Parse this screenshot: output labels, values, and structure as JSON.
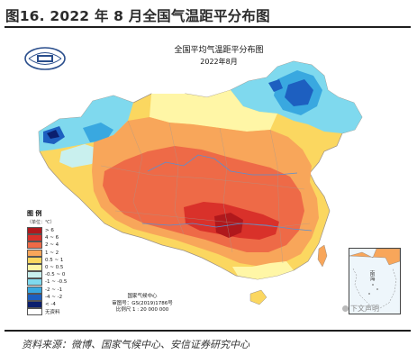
{
  "figure": {
    "title": "图16. 2022 年 8 月全国气温距平分布图",
    "source": "资料来源：微博、国家气候中心、安信证券研究中心"
  },
  "map": {
    "title": "全国平均气温距平分布图",
    "subtitle": "2022年8月",
    "agency_lines": [
      "国家气候中心",
      "审图号：GS(2019)1786号",
      "比例尺 1 : 20 000 000"
    ],
    "inset_label": "南海",
    "watermark": "下文声明",
    "legend": {
      "title": "图 例",
      "unit": "（单位：℃）",
      "items": [
        {
          "label": "> 6",
          "color": "#b0181c"
        },
        {
          "label": "4 ~ 6",
          "color": "#d9312a"
        },
        {
          "label": "2 ~ 4",
          "color": "#ee6a47"
        },
        {
          "label": "1 ~ 2",
          "color": "#f8a65a"
        },
        {
          "label": "0.5 ~ 1",
          "color": "#fbd760"
        },
        {
          "label": "0 ~ 0.5",
          "color": "#fff6a6"
        },
        {
          "label": "-0.5 ~ 0",
          "color": "#c9f0ee"
        },
        {
          "label": "-1 ~ -0.5",
          "color": "#7fd9ee"
        },
        {
          "label": "-2 ~ -1",
          "color": "#39a8e0"
        },
        {
          "label": "-4 ~ -2",
          "color": "#1d5fc0"
        },
        {
          "label": "< -4",
          "color": "#0b1f6e"
        },
        {
          "label": "无资料",
          "color": "#ffffff"
        }
      ]
    }
  }
}
